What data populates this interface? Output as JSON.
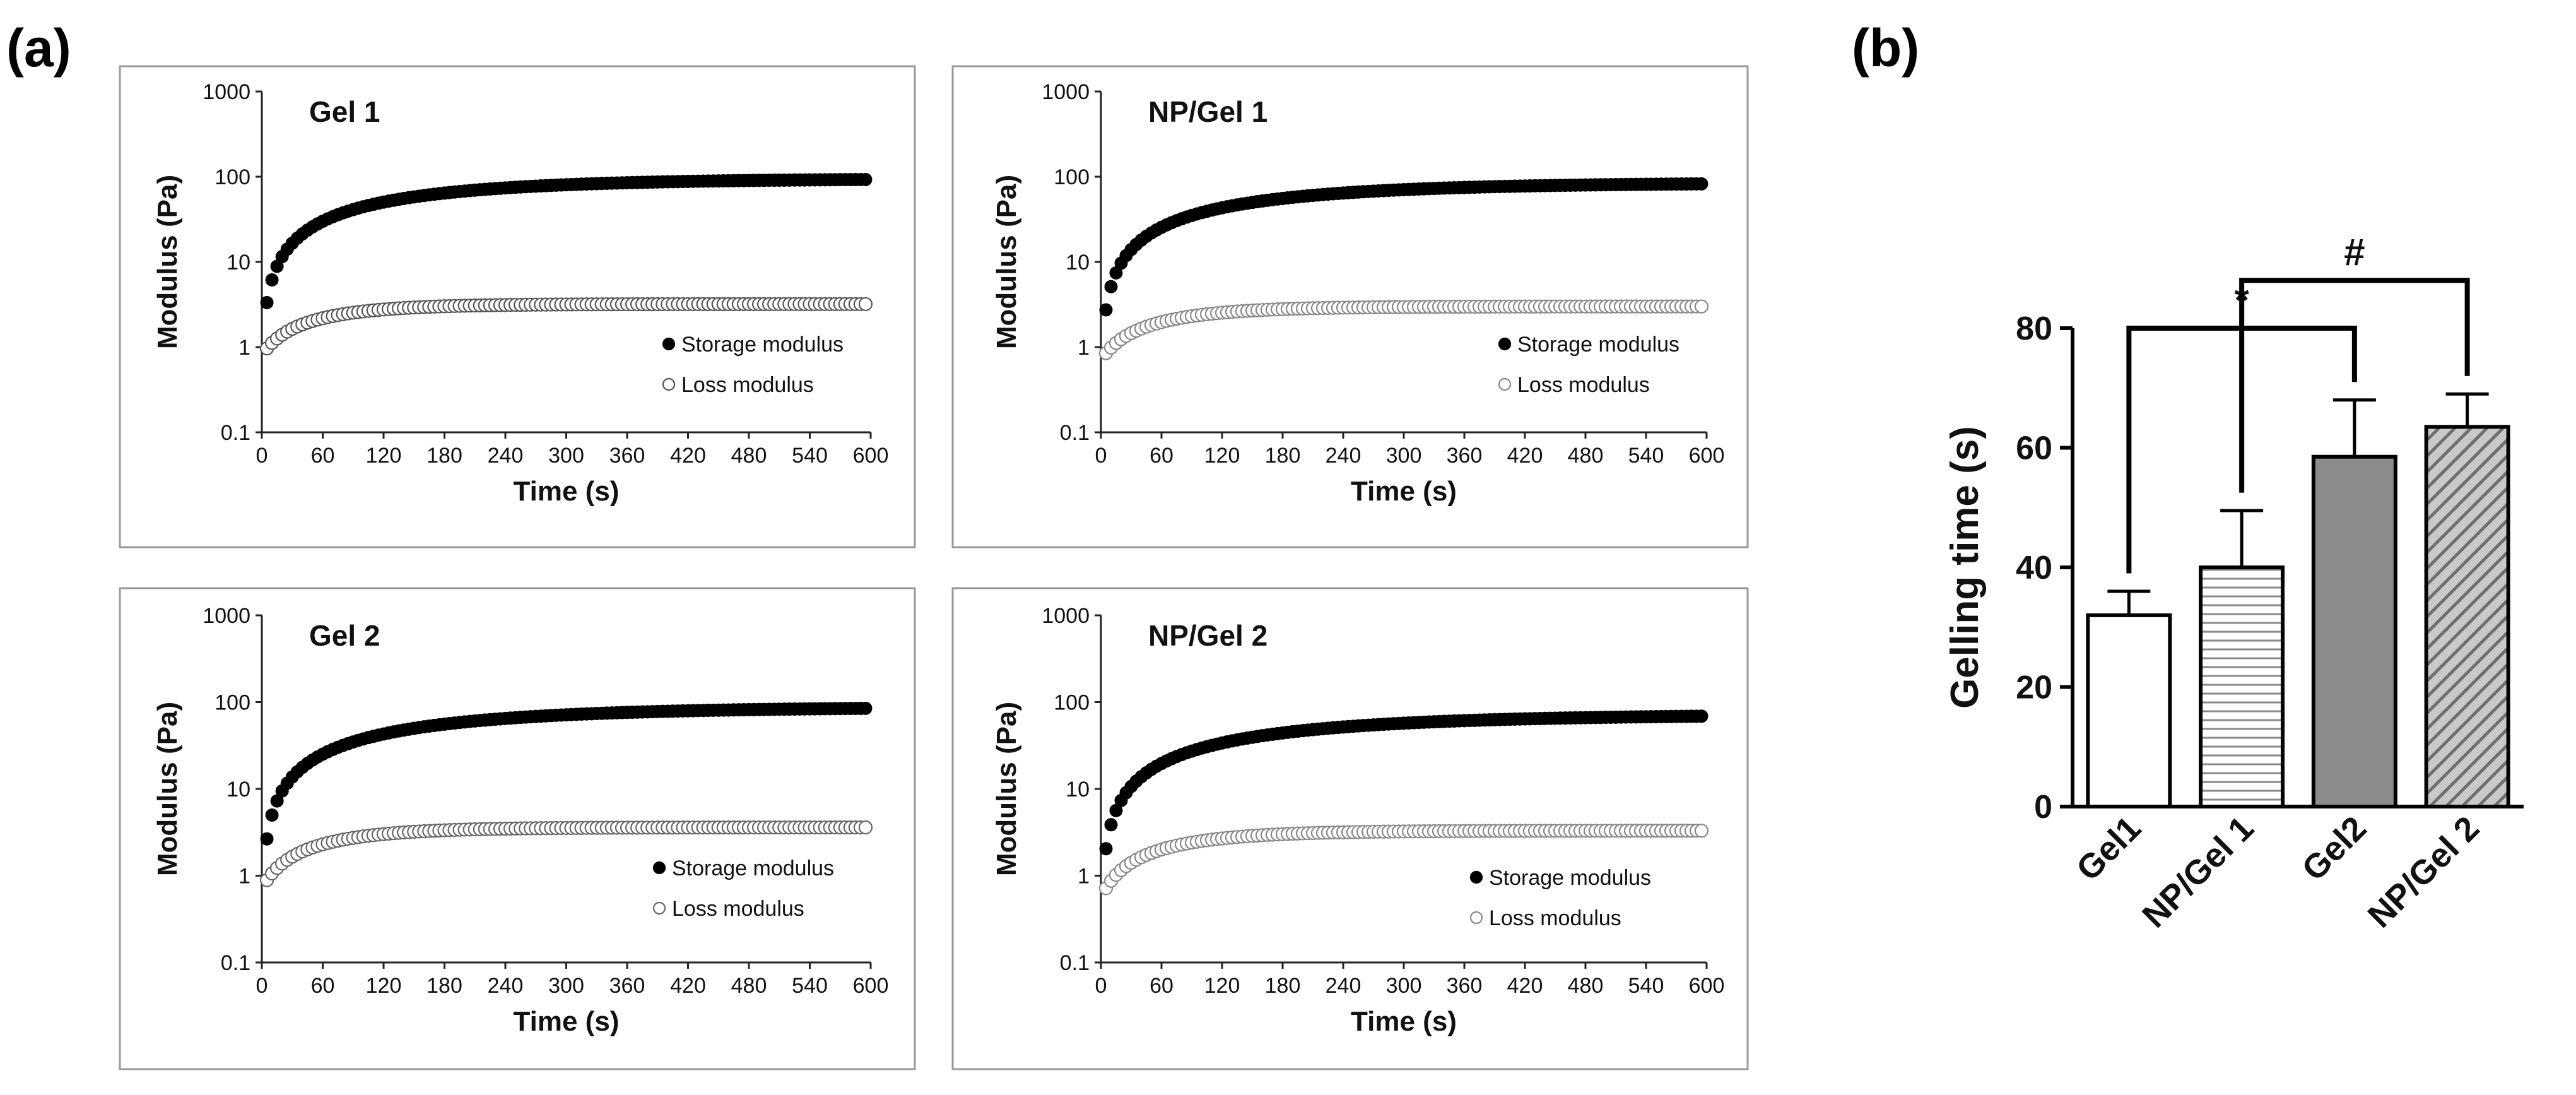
{
  "figure": {
    "panel_a_label": "(a)",
    "panel_b_label": "(b)"
  },
  "chart_data": [
    {
      "type": "scatter",
      "title": "Gel 1",
      "xlabel": "Time (s)",
      "ylabel": "Modulus (Pa)",
      "xlim": [
        0,
        600
      ],
      "ylim": [
        0.1,
        1000
      ],
      "yscale": "log",
      "x_ticks": [
        "0",
        "60",
        "120",
        "180",
        "240",
        "300",
        "360",
        "420",
        "480",
        "540",
        "600"
      ],
      "y_ticks": [
        "0.1",
        "1",
        "10",
        "100",
        "1000"
      ],
      "series": [
        {
          "name": "Storage modulus",
          "marker": "filled",
          "color": "#000000",
          "model": {
            "start": 0.42,
            "end": 95,
            "tau": 160
          }
        },
        {
          "name": "Loss modulus",
          "marker": "open",
          "color": "#555555",
          "model": {
            "start": 0.8,
            "end": 3.2,
            "tau": 70
          }
        }
      ]
    },
    {
      "type": "scatter",
      "title": "NP/Gel 1",
      "xlabel": "Time (s)",
      "ylabel": "Modulus (Pa)",
      "xlim": [
        0,
        600
      ],
      "ylim": [
        0.1,
        1000
      ],
      "yscale": "log",
      "x_ticks": [
        "0",
        "60",
        "120",
        "180",
        "240",
        "300",
        "360",
        "420",
        "480",
        "540",
        "600"
      ],
      "y_ticks": [
        "0.1",
        "1",
        "10",
        "100",
        "1000"
      ],
      "series": [
        {
          "name": "Storage modulus",
          "marker": "filled",
          "color": "#000000",
          "model": {
            "start": 0.28,
            "end": 85,
            "tau": 170
          }
        },
        {
          "name": "Loss modulus",
          "marker": "open",
          "color": "#888888",
          "model": {
            "start": 0.7,
            "end": 3.0,
            "tau": 75
          }
        }
      ]
    },
    {
      "type": "scatter",
      "title": "Gel 2",
      "xlabel": "Time (s)",
      "ylabel": "Modulus (Pa)",
      "xlim": [
        0,
        600
      ],
      "ylim": [
        0.1,
        1000
      ],
      "yscale": "log",
      "x_ticks": [
        "0",
        "60",
        "120",
        "180",
        "240",
        "300",
        "360",
        "420",
        "480",
        "540",
        "600"
      ],
      "y_ticks": [
        "0.1",
        "1",
        "10",
        "100",
        "1000"
      ],
      "series": [
        {
          "name": "Storage modulus",
          "marker": "filled",
          "color": "#000000",
          "model": {
            "start": 0.25,
            "end": 88,
            "tau": 180
          }
        },
        {
          "name": "Loss modulus",
          "marker": "open",
          "color": "#666666",
          "model": {
            "start": 0.7,
            "end": 3.6,
            "tau": 75
          }
        }
      ]
    },
    {
      "type": "scatter",
      "title": "NP/Gel 2",
      "xlabel": "Time (s)",
      "ylabel": "Modulus (Pa)",
      "xlim": [
        0,
        600
      ],
      "ylim": [
        0.1,
        1000
      ],
      "yscale": "log",
      "x_ticks": [
        "0",
        "60",
        "120",
        "180",
        "240",
        "300",
        "360",
        "420",
        "480",
        "540",
        "600"
      ],
      "y_ticks": [
        "0.1",
        "1",
        "10",
        "100",
        "1000"
      ],
      "series": [
        {
          "name": "Storage modulus",
          "marker": "filled",
          "color": "#000000",
          "model": {
            "start": 0.18,
            "end": 72,
            "tau": 190
          }
        },
        {
          "name": "Loss modulus",
          "marker": "open",
          "color": "#888888",
          "model": {
            "start": 0.55,
            "end": 3.3,
            "tau": 80
          }
        }
      ]
    },
    {
      "type": "bar",
      "title": "",
      "xlabel": "",
      "ylabel": "Gelling time (s)",
      "ylim": [
        0,
        80
      ],
      "y_ticks": [
        "0",
        "20",
        "40",
        "60",
        "80"
      ],
      "categories": [
        "Gel1",
        "NP/Gel 1",
        "Gel2",
        "NP/Gel 2"
      ],
      "values": [
        32,
        40,
        58.5,
        63.5
      ],
      "errors": [
        4,
        9.5,
        9.5,
        5.5
      ],
      "fills": [
        "white",
        "horizontal-stripes",
        "#8c8c8c",
        "diagonal-stripes"
      ],
      "significance": [
        {
          "label": "*",
          "from": "Gel1",
          "to": "Gel2",
          "level": 80
        },
        {
          "label": "#",
          "from": "NP/Gel 1",
          "to": "NP/Gel 2",
          "level": 88
        }
      ]
    }
  ]
}
